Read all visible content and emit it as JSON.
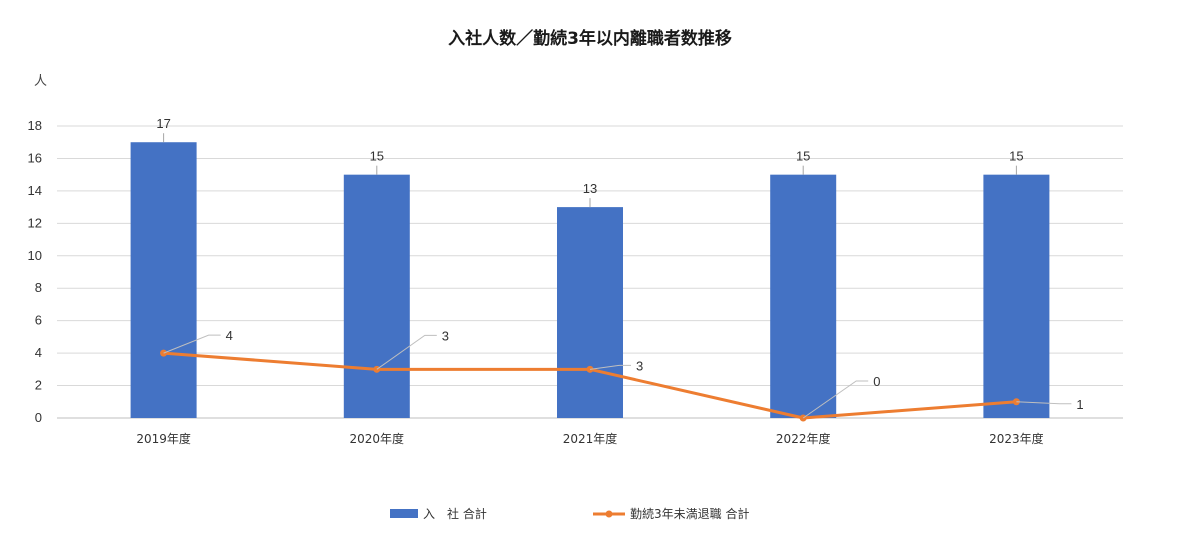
{
  "chart_data": {
    "type": "bar",
    "title": "入社人数／勤続3年以内離職者数推移",
    "ylabel": "人",
    "xlabel": "",
    "categories": [
      "2019年度",
      "2020年度",
      "2021年度",
      "2022年度",
      "2023年度"
    ],
    "ylim": [
      0,
      18
    ],
    "yticks": [
      0,
      2,
      4,
      6,
      8,
      10,
      12,
      14,
      16,
      18
    ],
    "grid": true,
    "legend_position": "bottom",
    "series": [
      {
        "name": "入　社 合計",
        "type": "bar",
        "color": "#4472C4",
        "values": [
          17,
          15,
          13,
          15,
          15
        ]
      },
      {
        "name": "勤続3年未満退職 合計",
        "type": "line",
        "color": "#ED7D31",
        "values": [
          4,
          3,
          3,
          0,
          1
        ]
      }
    ]
  }
}
